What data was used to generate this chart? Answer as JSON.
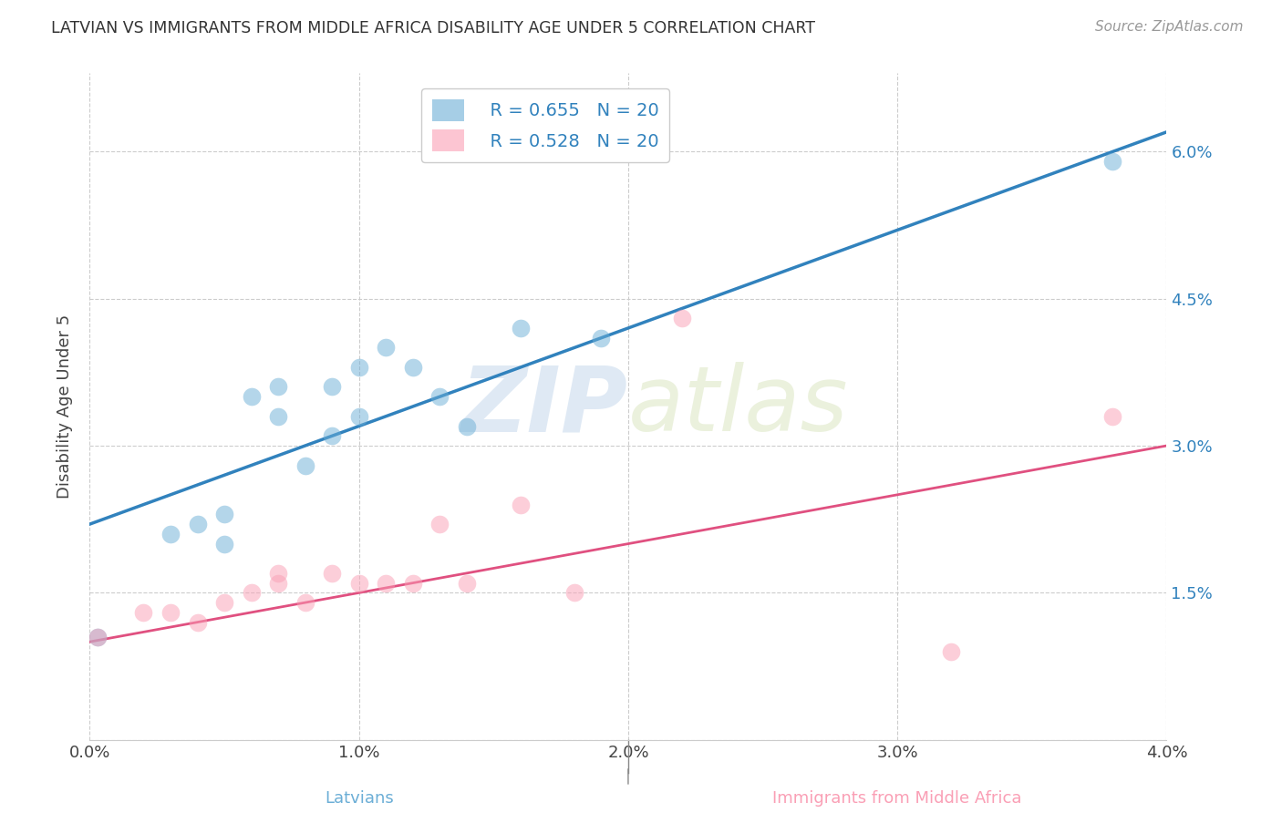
{
  "title": "LATVIAN VS IMMIGRANTS FROM MIDDLE AFRICA DISABILITY AGE UNDER 5 CORRELATION CHART",
  "source": "Source: ZipAtlas.com",
  "xlabel_latvians": "Latvians",
  "xlabel_immigrants": "Immigrants from Middle Africa",
  "ylabel": "Disability Age Under 5",
  "x_min": 0.0,
  "x_max": 0.04,
  "y_min": 0.0,
  "y_max": 0.068,
  "x_ticks": [
    0.0,
    0.01,
    0.02,
    0.03,
    0.04
  ],
  "x_tick_labels": [
    "0.0%",
    "1.0%",
    "2.0%",
    "3.0%",
    "4.0%"
  ],
  "y_ticks": [
    0.0,
    0.015,
    0.03,
    0.045,
    0.06
  ],
  "y_tick_labels": [
    "",
    "1.5%",
    "3.0%",
    "4.5%",
    "6.0%"
  ],
  "latvian_R": "R = 0.655",
  "latvian_N": "N = 20",
  "immigrant_R": "R = 0.528",
  "immigrant_N": "N = 20",
  "latvian_color": "#6baed6",
  "immigrant_color": "#fa9fb5",
  "latvian_line_color": "#3182bd",
  "immigrant_line_color": "#e05080",
  "legend_text_color": "#3182bd",
  "right_tick_color": "#3182bd",
  "watermark_color": "#d0e4f5",
  "latvian_x": [
    0.0003,
    0.003,
    0.004,
    0.005,
    0.005,
    0.006,
    0.007,
    0.007,
    0.008,
    0.009,
    0.009,
    0.01,
    0.01,
    0.011,
    0.012,
    0.013,
    0.014,
    0.016,
    0.019,
    0.038
  ],
  "latvian_y": [
    0.0105,
    0.021,
    0.022,
    0.02,
    0.023,
    0.035,
    0.033,
    0.036,
    0.028,
    0.031,
    0.036,
    0.033,
    0.038,
    0.04,
    0.038,
    0.035,
    0.032,
    0.042,
    0.041,
    0.059
  ],
  "immigrant_x": [
    0.0003,
    0.002,
    0.003,
    0.004,
    0.005,
    0.006,
    0.007,
    0.007,
    0.008,
    0.009,
    0.01,
    0.011,
    0.012,
    0.013,
    0.014,
    0.016,
    0.018,
    0.022,
    0.032,
    0.038
  ],
  "immigrant_y": [
    0.0105,
    0.013,
    0.013,
    0.012,
    0.014,
    0.015,
    0.016,
    0.017,
    0.014,
    0.017,
    0.016,
    0.016,
    0.016,
    0.022,
    0.016,
    0.024,
    0.015,
    0.043,
    0.009,
    0.033
  ],
  "latvian_line_x0": 0.0,
  "latvian_line_y0": 0.022,
  "latvian_line_x1": 0.04,
  "latvian_line_y1": 0.062,
  "immigrant_line_x0": 0.0,
  "immigrant_line_y0": 0.01,
  "immigrant_line_x1": 0.04,
  "immigrant_line_y1": 0.03
}
